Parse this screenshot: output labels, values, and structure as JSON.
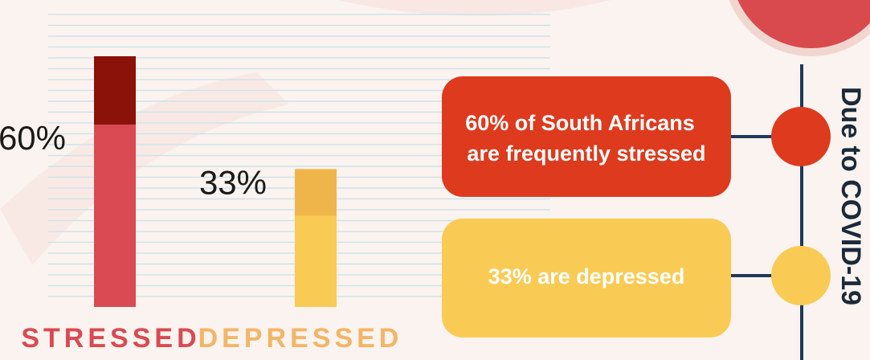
{
  "chart_data": {
    "type": "bar",
    "categories": [
      "STRESSED",
      "DEPRESSED"
    ],
    "values": [
      60,
      33
    ],
    "value_labels": [
      "60%",
      "33%"
    ],
    "colors": [
      "#d94a52",
      "#f9cb55"
    ],
    "annotations": [
      [
        "60% of South Africans",
        "are frequently stressed"
      ],
      [
        "33% are depressed"
      ]
    ],
    "side_title": "Due to COVID-19"
  }
}
